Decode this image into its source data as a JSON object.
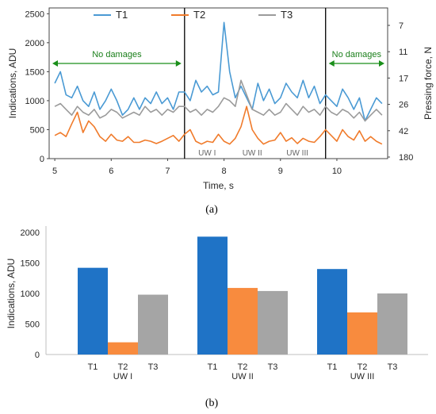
{
  "chart_data": [
    {
      "type": "line",
      "panel_label": "(a)",
      "xlabel": "Time, s",
      "ylabel": "Indications, ADU",
      "y2label": "Pressing force, N",
      "xlim": [
        4.9,
        10.9
      ],
      "ylim": [
        0,
        2600
      ],
      "x_ticks": [
        "5",
        "6",
        "7",
        "8",
        "9",
        "10"
      ],
      "y_ticks": [
        "0",
        "500",
        "1000",
        "1500",
        "2000",
        "2500"
      ],
      "y2_ticks": [
        "7",
        "11",
        "17",
        "26",
        "42",
        "180"
      ],
      "grid": false,
      "legend_position": "top",
      "series": [
        {
          "name": "T1",
          "color": "#4a9ad4",
          "x": [
            5.0,
            5.1,
            5.2,
            5.3,
            5.4,
            5.5,
            5.6,
            5.7,
            5.8,
            5.9,
            6.0,
            6.1,
            6.2,
            6.3,
            6.4,
            6.5,
            6.6,
            6.7,
            6.8,
            6.9,
            7.0,
            7.1,
            7.2,
            7.3,
            7.4,
            7.5,
            7.6,
            7.7,
            7.8,
            7.9,
            8.0,
            8.1,
            8.2,
            8.3,
            8.4,
            8.5,
            8.6,
            8.7,
            8.8,
            8.9,
            9.0,
            9.1,
            9.2,
            9.3,
            9.4,
            9.5,
            9.6,
            9.7,
            9.8,
            9.9,
            10.0,
            10.1,
            10.2,
            10.3,
            10.4,
            10.5,
            10.6,
            10.7,
            10.8
          ],
          "y": [
            1300,
            1500,
            1100,
            1050,
            1250,
            1000,
            900,
            1150,
            850,
            1000,
            1200,
            1000,
            750,
            850,
            1050,
            850,
            1050,
            950,
            1150,
            950,
            1050,
            850,
            1150,
            1150,
            1000,
            1350,
            1150,
            1250,
            1100,
            1150,
            2350,
            1500,
            1050,
            1250,
            1050,
            850,
            1300,
            1000,
            1200,
            950,
            1050,
            1300,
            1150,
            1050,
            1350,
            1050,
            1250,
            950,
            1100,
            1000,
            900,
            1200,
            1050,
            850,
            1050,
            650,
            850,
            1050,
            950
          ]
        },
        {
          "name": "T2",
          "color": "#f07b2b",
          "x": [
            5.0,
            5.1,
            5.2,
            5.3,
            5.4,
            5.5,
            5.6,
            5.7,
            5.8,
            5.9,
            6.0,
            6.1,
            6.2,
            6.3,
            6.4,
            6.5,
            6.6,
            6.7,
            6.8,
            6.9,
            7.0,
            7.1,
            7.2,
            7.3,
            7.4,
            7.5,
            7.6,
            7.7,
            7.8,
            7.9,
            8.0,
            8.1,
            8.2,
            8.3,
            8.4,
            8.5,
            8.6,
            8.7,
            8.8,
            8.9,
            9.0,
            9.1,
            9.2,
            9.3,
            9.4,
            9.5,
            9.6,
            9.7,
            9.8,
            9.9,
            10.0,
            10.1,
            10.2,
            10.3,
            10.4,
            10.5,
            10.6,
            10.7,
            10.8
          ],
          "y": [
            400,
            450,
            380,
            600,
            800,
            450,
            650,
            550,
            380,
            300,
            420,
            320,
            300,
            380,
            280,
            280,
            320,
            300,
            260,
            300,
            350,
            400,
            300,
            420,
            500,
            300,
            250,
            300,
            280,
            420,
            300,
            250,
            350,
            550,
            900,
            500,
            350,
            250,
            300,
            320,
            450,
            300,
            360,
            260,
            350,
            300,
            280,
            380,
            500,
            400,
            300,
            500,
            380,
            320,
            480,
            300,
            380,
            300,
            250
          ]
        },
        {
          "name": "T3",
          "color": "#9b9b9b",
          "x": [
            5.0,
            5.1,
            5.2,
            5.3,
            5.4,
            5.5,
            5.6,
            5.7,
            5.8,
            5.9,
            6.0,
            6.1,
            6.2,
            6.3,
            6.4,
            6.5,
            6.6,
            6.7,
            6.8,
            6.9,
            7.0,
            7.1,
            7.2,
            7.3,
            7.4,
            7.5,
            7.6,
            7.7,
            7.8,
            7.9,
            8.0,
            8.1,
            8.2,
            8.3,
            8.4,
            8.5,
            8.6,
            8.7,
            8.8,
            8.9,
            9.0,
            9.1,
            9.2,
            9.3,
            9.4,
            9.5,
            9.6,
            9.7,
            9.8,
            9.9,
            10.0,
            10.1,
            10.2,
            10.3,
            10.4,
            10.5,
            10.6,
            10.7,
            10.8
          ],
          "y": [
            900,
            950,
            850,
            750,
            900,
            800,
            750,
            850,
            700,
            750,
            850,
            800,
            700,
            750,
            800,
            750,
            900,
            800,
            850,
            750,
            850,
            800,
            900,
            900,
            800,
            850,
            750,
            850,
            800,
            900,
            1050,
            1000,
            900,
            1350,
            1100,
            850,
            800,
            750,
            850,
            750,
            800,
            950,
            850,
            750,
            900,
            800,
            850,
            750,
            900,
            800,
            750,
            850,
            800,
            700,
            800,
            650,
            750,
            850,
            750
          ]
        }
      ],
      "annotations": [
        {
          "text": "No damages",
          "x_range": [
            4.9,
            7.3
          ]
        },
        {
          "text": "No damages",
          "x_range": [
            9.8,
            10.9
          ]
        }
      ],
      "vertical_lines_x": [
        7.3,
        9.8
      ],
      "zone_labels": [
        {
          "text": "UW I",
          "x": 7.7
        },
        {
          "text": "UW II",
          "x": 8.5
        },
        {
          "text": "UW III",
          "x": 9.3
        }
      ]
    },
    {
      "type": "bar",
      "panel_label": "(b)",
      "ylabel": "Indications, ADU",
      "ylim": [
        0,
        2000
      ],
      "y_ticks": [
        "0",
        "500",
        "1000",
        "1500",
        "2000"
      ],
      "grid": false,
      "groups": [
        {
          "name": "UW I",
          "bars": [
            {
              "label": "T1",
              "value": 1420,
              "color": "#1f73c6"
            },
            {
              "label": "T2",
              "value": 200,
              "color": "#f88b3e"
            },
            {
              "label": "T3",
              "value": 980,
              "color": "#a5a5a5"
            }
          ]
        },
        {
          "name": "UW II",
          "bars": [
            {
              "label": "T1",
              "value": 1930,
              "color": "#1f73c6"
            },
            {
              "label": "T2",
              "value": 1090,
              "color": "#f88b3e"
            },
            {
              "label": "T3",
              "value": 1040,
              "color": "#a5a5a5"
            }
          ]
        },
        {
          "name": "UW III",
          "bars": [
            {
              "label": "T1",
              "value": 1400,
              "color": "#1f73c6"
            },
            {
              "label": "T2",
              "value": 690,
              "color": "#f88b3e"
            },
            {
              "label": "T3",
              "value": 1000,
              "color": "#a5a5a5"
            }
          ]
        }
      ]
    }
  ]
}
